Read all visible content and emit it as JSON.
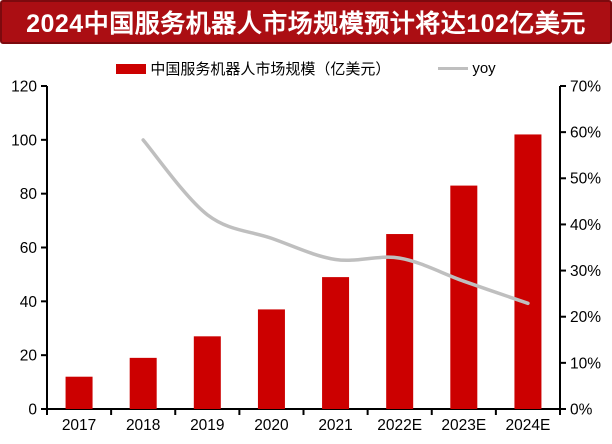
{
  "banner": {
    "title": "2024中国服务机器人市场规模预计将达102亿美元",
    "bg_color": "#ab0e13",
    "border_color": "#7c0a0e",
    "text_color": "#ffffff"
  },
  "legend": {
    "bar_label": "中国服务机器人市场规模（亿美元）",
    "line_label": "yoy"
  },
  "chart_data": {
    "type": "bar",
    "subtype": "bar-line-combo",
    "categories": [
      "2017",
      "2018",
      "2019",
      "2020",
      "2021",
      "2022E",
      "2023E",
      "2024E"
    ],
    "series": [
      {
        "name": "中国服务机器人市场规模（亿美元）",
        "type": "bar",
        "axis": "left",
        "color": "#cc0000",
        "values": [
          12,
          19,
          27,
          37,
          49,
          65,
          83,
          102
        ]
      },
      {
        "name": "yoy",
        "type": "line",
        "axis": "right",
        "color": "#bfbfbf",
        "unit": "%",
        "values": [
          null,
          58.3,
          42.1,
          37.0,
          32.4,
          32.7,
          27.7,
          22.9
        ]
      }
    ],
    "left_axis": {
      "min": 0,
      "max": 120,
      "step": 20,
      "tick_labels": [
        "0",
        "20",
        "40",
        "60",
        "80",
        "100",
        "120"
      ]
    },
    "right_axis": {
      "min": 0,
      "max": 70,
      "step": 10,
      "tick_labels": [
        "0%",
        "10%",
        "20%",
        "30%",
        "40%",
        "50%",
        "60%",
        "70%"
      ]
    },
    "grid": false,
    "legend_position": "top",
    "axis_color": "#000000"
  }
}
